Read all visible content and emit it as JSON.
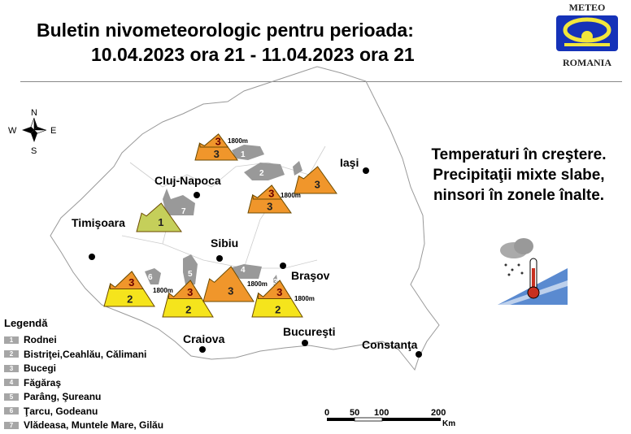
{
  "title": {
    "line1": "Buletin nivometeorologic pentru perioada:",
    "line2": "10.04.2023 ora 21 - 11.04.2023 ora 21"
  },
  "logo": {
    "top": "METEO",
    "bottom": "ROMANIA"
  },
  "compass": {
    "n": "N",
    "s": "S",
    "e": "E",
    "w": "W"
  },
  "forecast_text": [
    "Temperaturi în creştere.",
    "Precipitaţii mixte slabe,",
    "ninsori în zonele înalte."
  ],
  "weather_icon": "snow-rain-cloud-thermometer-icon",
  "cities": [
    "Cluj-Napoca",
    "Timişoara",
    "Sibiu",
    "Braşov",
    "Iaşi",
    "Craiova",
    "Bucureşti",
    "Constanţa"
  ],
  "legend": {
    "title": "Legendă",
    "items": [
      {
        "n": "1",
        "label": "Rodnei"
      },
      {
        "n": "2",
        "label": "Bistriţei,Ceahlău, Călimani"
      },
      {
        "n": "3",
        "label": "Bucegi"
      },
      {
        "n": "4",
        "label": "Făgăraş"
      },
      {
        "n": "5",
        "label": "Parâng, Şureanu"
      },
      {
        "n": "6",
        "label": "Ţarcu, Godeanu"
      },
      {
        "n": "7",
        "label": "Vlădeasa, Muntele Mare, Gilău"
      }
    ]
  },
  "risk_colors": {
    "1": "#c5cf5a",
    "2": "#f5e41c",
    "3": "#f0962b"
  },
  "risk_markers": [
    {
      "zone": "Rodnei",
      "above": 3,
      "below": 3,
      "altitude": "1800m"
    },
    {
      "zone": "Bistriţei, Călimani",
      "above": 3,
      "below": 3,
      "altitude": "1800m"
    },
    {
      "zone": "Ceahlău",
      "level": 3
    },
    {
      "zone": "Vlădeasa, Muntele Mare, Gilău",
      "level": 1
    },
    {
      "zone": "Ţarcu, Godeanu",
      "above": 3,
      "below": 2,
      "altitude": "1800m"
    },
    {
      "zone": "Parâng, Şureanu",
      "above": 3,
      "below": 2
    },
    {
      "zone": "Făgăraş",
      "level": 3,
      "altitude": "1800m"
    },
    {
      "zone": "Bucegi",
      "above": 3,
      "below": 2,
      "altitude": "1800m"
    }
  ],
  "scale": {
    "labels": [
      "0",
      "50",
      "100",
      "200"
    ],
    "unit": "Km"
  }
}
